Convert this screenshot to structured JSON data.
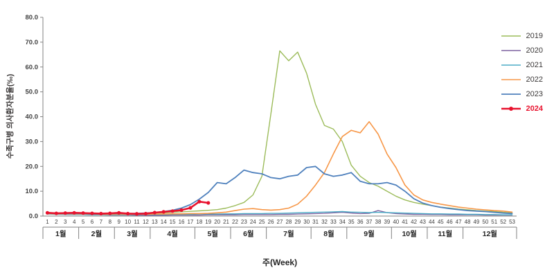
{
  "chart_data": {
    "type": "line",
    "title": "",
    "ylabel": "수족구병 의사환자분율(‰)",
    "xlabel": "주(Week)",
    "ylim": [
      0,
      80
    ],
    "ytick_labels": [
      "0.0",
      "10.0",
      "20.0",
      "30.0",
      "40.0",
      "50.0",
      "60.0",
      "70.0",
      "80.0"
    ],
    "week_labels": [
      "1",
      "2",
      "3",
      "4",
      "5",
      "6",
      "7",
      "8",
      "9",
      "10",
      "11",
      "12",
      "13",
      "14",
      "15",
      "16",
      "17",
      "18",
      "19",
      "20",
      "21",
      "22",
      "23",
      "24",
      "25",
      "26",
      "27",
      "28",
      "29",
      "30",
      "31",
      "32",
      "33",
      "34",
      "35",
      "36",
      "37",
      "38",
      "39",
      "40",
      "41",
      "42",
      "43",
      "44",
      "45",
      "46",
      "47",
      "48",
      "49",
      "50",
      "51",
      "52",
      "53"
    ],
    "months": [
      {
        "label": "1월",
        "from": 1,
        "to": 4
      },
      {
        "label": "2월",
        "from": 5,
        "to": 8
      },
      {
        "label": "3월",
        "from": 9,
        "to": 12
      },
      {
        "label": "4월",
        "from": 13,
        "to": 17
      },
      {
        "label": "5월",
        "from": 18,
        "to": 21
      },
      {
        "label": "6월",
        "from": 22,
        "to": 25
      },
      {
        "label": "7월",
        "from": 26,
        "to": 30
      },
      {
        "label": "8월",
        "from": 31,
        "to": 34
      },
      {
        "label": "9월",
        "from": 35,
        "to": 39
      },
      {
        "label": "10월",
        "from": 40,
        "to": 43
      },
      {
        "label": "11월",
        "from": 44,
        "to": 47
      },
      {
        "label": "12월",
        "from": 48,
        "to": 53
      }
    ],
    "legend_position": "right",
    "grid": false,
    "series": [
      {
        "name": "2019",
        "color": "#9BBB59",
        "width": 1.4,
        "marker": false,
        "bold": false,
        "values": [
          1.4,
          1.3,
          1.2,
          1.1,
          1.1,
          1.0,
          1.0,
          1.0,
          1.1,
          1.0,
          1.0,
          1.1,
          1.2,
          1.3,
          1.5,
          1.7,
          1.9,
          2.1,
          2.3,
          2.6,
          3.2,
          4.2,
          5.5,
          8.5,
          16.0,
          41.0,
          66.5,
          62.5,
          66.0,
          57.5,
          45.0,
          36.5,
          35.0,
          30.0,
          20.5,
          16.0,
          13.5,
          12.0,
          10.0,
          8.0,
          6.5,
          5.5,
          4.8,
          4.2,
          3.6,
          3.2,
          2.8,
          2.5,
          2.2,
          2.0,
          1.8,
          1.5,
          1.3
        ]
      },
      {
        "name": "2020",
        "color": "#7F63A1",
        "width": 1.4,
        "marker": false,
        "bold": false,
        "values": [
          0.9,
          0.8,
          0.7,
          0.6,
          0.6,
          0.5,
          0.5,
          0.4,
          0.4,
          0.4,
          0.3,
          0.3,
          0.3,
          0.3,
          0.4,
          0.4,
          0.4,
          0.4,
          0.5,
          0.5,
          0.5,
          0.5,
          0.6,
          0.6,
          0.6,
          0.6,
          0.7,
          0.7,
          0.8,
          0.9,
          1.0,
          1.1,
          1.3,
          1.5,
          1.2,
          1.0,
          1.1,
          2.2,
          1.4,
          1.0,
          0.8,
          0.7,
          0.7,
          0.6,
          0.6,
          0.5,
          0.5,
          0.5,
          0.5,
          0.4,
          0.4,
          0.4,
          0.4
        ]
      },
      {
        "name": "2021",
        "color": "#4BACC6",
        "width": 1.4,
        "marker": false,
        "bold": false,
        "values": [
          0.8,
          0.7,
          0.7,
          0.6,
          0.6,
          0.5,
          0.5,
          0.5,
          0.5,
          0.5,
          0.5,
          0.6,
          0.6,
          0.6,
          0.7,
          0.7,
          0.7,
          0.8,
          0.8,
          0.8,
          0.9,
          0.9,
          1.0,
          1.0,
          1.0,
          1.1,
          1.1,
          1.2,
          1.3,
          1.4,
          1.5,
          1.6,
          1.7,
          1.8,
          1.6,
          1.5,
          1.4,
          1.5,
          1.4,
          1.3,
          1.2,
          1.1,
          1.0,
          0.9,
          0.9,
          0.8,
          0.8,
          0.7,
          0.7,
          0.6,
          0.6,
          0.5,
          0.5
        ]
      },
      {
        "name": "2022",
        "color": "#F79646",
        "width": 1.6,
        "marker": false,
        "bold": false,
        "values": [
          1.0,
          0.9,
          0.9,
          0.8,
          0.8,
          0.8,
          0.7,
          0.7,
          0.7,
          0.7,
          0.7,
          0.7,
          0.8,
          0.8,
          0.9,
          0.9,
          1.0,
          1.0,
          1.1,
          1.3,
          1.6,
          2.2,
          2.8,
          3.0,
          2.6,
          2.4,
          2.6,
          3.2,
          4.8,
          8.0,
          12.5,
          17.5,
          25.0,
          32.0,
          34.5,
          33.5,
          38.0,
          33.0,
          25.0,
          19.5,
          12.5,
          8.5,
          6.5,
          5.5,
          4.8,
          4.2,
          3.6,
          3.2,
          2.8,
          2.5,
          2.2,
          2.0,
          1.6
        ]
      },
      {
        "name": "2023",
        "color": "#4F81BD",
        "width": 1.8,
        "marker": false,
        "bold": false,
        "values": [
          1.2,
          1.1,
          1.0,
          1.0,
          1.0,
          0.9,
          0.9,
          1.0,
          1.0,
          1.0,
          1.1,
          1.2,
          1.4,
          1.8,
          2.3,
          3.2,
          4.6,
          6.8,
          9.5,
          13.5,
          13.0,
          15.5,
          18.5,
          17.5,
          17.0,
          15.5,
          15.0,
          16.0,
          16.5,
          19.5,
          20.0,
          17.0,
          16.0,
          16.5,
          17.5,
          14.0,
          13.0,
          13.0,
          13.5,
          12.5,
          10.0,
          7.0,
          5.2,
          4.2,
          3.5,
          3.0,
          2.6,
          2.2,
          2.0,
          1.8,
          1.5,
          1.2,
          1.0
        ]
      },
      {
        "name": "2024",
        "color": "#E8112D",
        "width": 2.6,
        "marker": true,
        "bold": true,
        "values": [
          1.3,
          1.1,
          1.2,
          1.3,
          1.2,
          1.1,
          1.0,
          1.1,
          1.3,
          1.0,
          0.9,
          1.0,
          1.4,
          1.7,
          2.0,
          2.4,
          3.3,
          5.8,
          5.3,
          null,
          null,
          null,
          null,
          null,
          null,
          null,
          null,
          null,
          null,
          null,
          null,
          null,
          null,
          null,
          null,
          null,
          null,
          null,
          null,
          null,
          null,
          null,
          null,
          null,
          null,
          null,
          null,
          null,
          null,
          null,
          null,
          null,
          null
        ]
      }
    ]
  }
}
